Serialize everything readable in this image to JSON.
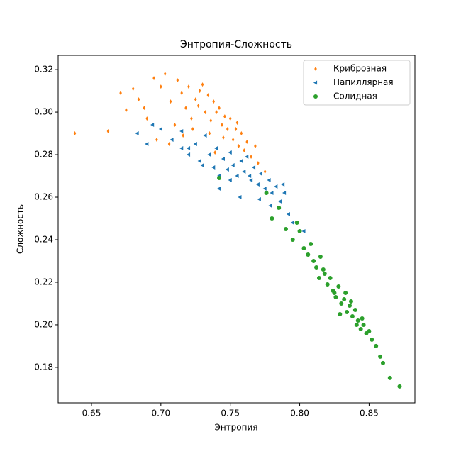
{
  "chart_data": {
    "type": "scatter",
    "title": "Энтропия-Сложность",
    "x_label": "Энтропия",
    "y_label": "Сложность",
    "xlim": [
      0.626,
      0.883
    ],
    "ylim": [
      0.1633,
      0.3267
    ],
    "xticks": [
      0.65,
      {
        "value": 0.7,
        "label": "0.70"
      },
      0.75,
      {
        "value": 0.8,
        "label": "0.80"
      },
      0.85
    ],
    "yticks": [
      0.18,
      {
        "value": 0.2,
        "label": "0.20"
      },
      0.22,
      0.24,
      0.26,
      0.28,
      {
        "value": 0.3,
        "label": "0.30"
      },
      0.32
    ],
    "legend": "upper right",
    "series": [
      {
        "name": "Криброзная",
        "color": "#ff7f0e",
        "marker": "diamond",
        "x": [
          0.638,
          0.662,
          0.671,
          0.675,
          0.68,
          0.684,
          0.69,
          0.695,
          0.7,
          0.703,
          0.707,
          0.71,
          0.712,
          0.715,
          0.718,
          0.72,
          0.722,
          0.725,
          0.727,
          0.73,
          0.732,
          0.734,
          0.736,
          0.738,
          0.74,
          0.742,
          0.744,
          0.746,
          0.748,
          0.75,
          0.752,
          0.754,
          0.756,
          0.758,
          0.76,
          0.762,
          0.765,
          0.768,
          0.77,
          0.775,
          0.706,
          0.716,
          0.728,
          0.735,
          0.745,
          0.755,
          0.697,
          0.688,
          0.723,
          0.739
        ],
        "values": [
          0.29,
          0.291,
          0.309,
          0.301,
          0.311,
          0.306,
          0.297,
          0.316,
          0.312,
          0.318,
          0.305,
          0.294,
          0.315,
          0.309,
          0.302,
          0.312,
          0.297,
          0.306,
          0.303,
          0.313,
          0.3,
          0.308,
          0.296,
          0.305,
          0.3,
          0.302,
          0.294,
          0.298,
          0.292,
          0.297,
          0.287,
          0.292,
          0.284,
          0.29,
          0.282,
          0.286,
          0.279,
          0.284,
          0.276,
          0.272,
          0.285,
          0.289,
          0.31,
          0.29,
          0.288,
          0.295,
          0.287,
          0.302,
          0.292,
          0.281
        ]
      },
      {
        "name": "Папиллярная",
        "color": "#1f77b4",
        "marker": "triangle-left",
        "x": [
          0.683,
          0.69,
          0.694,
          0.7,
          0.708,
          0.715,
          0.72,
          0.725,
          0.728,
          0.732,
          0.735,
          0.738,
          0.74,
          0.742,
          0.745,
          0.748,
          0.75,
          0.752,
          0.755,
          0.758,
          0.76,
          0.762,
          0.765,
          0.767,
          0.77,
          0.772,
          0.775,
          0.778,
          0.78,
          0.783,
          0.786,
          0.789,
          0.792,
          0.795,
          0.742,
          0.75,
          0.757,
          0.764,
          0.73,
          0.72,
          0.715,
          0.771,
          0.779,
          0.803,
          0.788
        ],
        "values": [
          0.29,
          0.285,
          0.294,
          0.292,
          0.287,
          0.283,
          0.28,
          0.285,
          0.277,
          0.289,
          0.28,
          0.274,
          0.283,
          0.27,
          0.278,
          0.273,
          0.281,
          0.275,
          0.27,
          0.277,
          0.272,
          0.279,
          0.268,
          0.274,
          0.266,
          0.271,
          0.264,
          0.268,
          0.262,
          0.265,
          0.258,
          0.262,
          0.252,
          0.248,
          0.264,
          0.268,
          0.26,
          0.27,
          0.275,
          0.283,
          0.291,
          0.259,
          0.256,
          0.244,
          0.266
        ]
      },
      {
        "name": "Солидная",
        "color": "#2ca02c",
        "marker": "circle",
        "x": [
          0.742,
          0.776,
          0.78,
          0.785,
          0.79,
          0.795,
          0.8,
          0.803,
          0.806,
          0.81,
          0.812,
          0.815,
          0.818,
          0.82,
          0.822,
          0.824,
          0.826,
          0.828,
          0.83,
          0.832,
          0.834,
          0.836,
          0.838,
          0.84,
          0.842,
          0.844,
          0.846,
          0.848,
          0.85,
          0.852,
          0.855,
          0.858,
          0.86,
          0.865,
          0.872,
          0.808,
          0.814,
          0.825,
          0.833,
          0.841,
          0.817,
          0.829,
          0.837,
          0.845,
          0.798
        ],
        "values": [
          0.269,
          0.262,
          0.25,
          0.255,
          0.245,
          0.24,
          0.244,
          0.236,
          0.233,
          0.23,
          0.227,
          0.232,
          0.224,
          0.219,
          0.222,
          0.216,
          0.213,
          0.218,
          0.21,
          0.212,
          0.206,
          0.209,
          0.204,
          0.207,
          0.202,
          0.198,
          0.2,
          0.196,
          0.197,
          0.193,
          0.19,
          0.185,
          0.182,
          0.175,
          0.171,
          0.238,
          0.222,
          0.215,
          0.215,
          0.2,
          0.226,
          0.205,
          0.211,
          0.203,
          0.248
        ]
      }
    ]
  }
}
